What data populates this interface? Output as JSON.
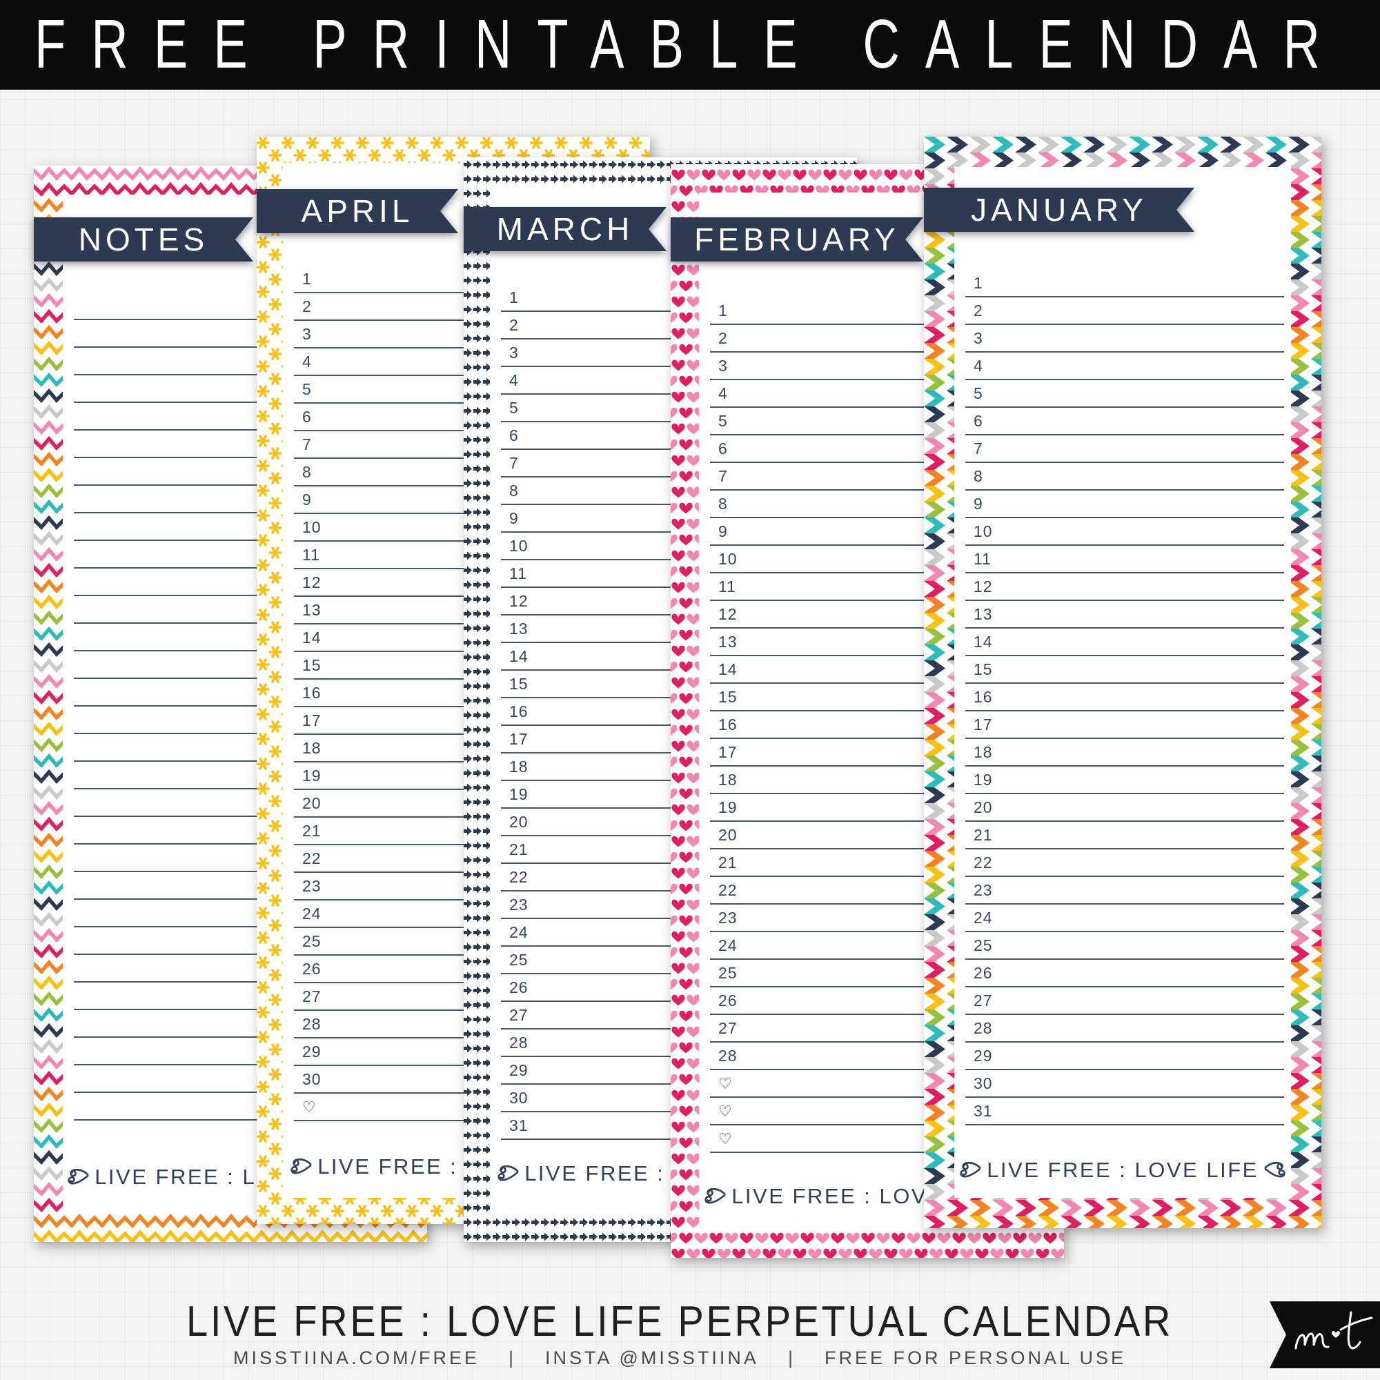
{
  "header": {
    "title": "FREE PRINTABLE CALENDAR"
  },
  "cards": [
    {
      "id": "notes",
      "title": "NOTES",
      "pattern_icon": "rainbow-zigzag-chevron-border",
      "footer": "LIVE FREE : LOVE LIFE",
      "rows": [
        "",
        "",
        "",
        "",
        "",
        "",
        "",
        "",
        "",
        "",
        "",
        "",
        "",
        "",
        "",
        "",
        "",
        "",
        "",
        "",
        "",
        "",
        "",
        "",
        "",
        "",
        "",
        "",
        "",
        ""
      ]
    },
    {
      "id": "april",
      "title": "APRIL",
      "pattern_icon": "yellow-asterisk-border",
      "footer": "LIVE FREE : LOVE LIFE",
      "rows": [
        "1",
        "2",
        "3",
        "4",
        "5",
        "6",
        "7",
        "8",
        "9",
        "10",
        "11",
        "12",
        "13",
        "14",
        "15",
        "16",
        "17",
        "18",
        "19",
        "20",
        "21",
        "22",
        "23",
        "24",
        "25",
        "26",
        "27",
        "28",
        "29",
        "30",
        "♡"
      ]
    },
    {
      "id": "march",
      "title": "MARCH",
      "pattern_icon": "navy-mini-arrows-border",
      "footer": "LIVE FREE : LOVE LIFE",
      "rows": [
        "1",
        "2",
        "3",
        "4",
        "5",
        "6",
        "7",
        "8",
        "9",
        "10",
        "11",
        "12",
        "13",
        "14",
        "15",
        "16",
        "17",
        "18",
        "19",
        "20",
        "21",
        "22",
        "23",
        "24",
        "25",
        "26",
        "27",
        "28",
        "29",
        "30",
        "31"
      ]
    },
    {
      "id": "february",
      "title": "FEBRUARY",
      "pattern_icon": "pink-hearts-border",
      "footer": "LIVE FREE : LOVE LIFE",
      "rows": [
        "1",
        "2",
        "3",
        "4",
        "5",
        "6",
        "7",
        "8",
        "9",
        "10",
        "11",
        "12",
        "13",
        "14",
        "15",
        "16",
        "17",
        "18",
        "19",
        "20",
        "21",
        "22",
        "23",
        "24",
        "25",
        "26",
        "27",
        "28",
        "♡",
        "♡",
        "♡"
      ]
    },
    {
      "id": "january",
      "title": "JANUARY",
      "pattern_icon": "rainbow-chevron-arrows-border",
      "footer": "LIVE FREE : LOVE LIFE",
      "rows": [
        "1",
        "2",
        "3",
        "4",
        "5",
        "6",
        "7",
        "8",
        "9",
        "10",
        "11",
        "12",
        "13",
        "14",
        "15",
        "16",
        "17",
        "18",
        "19",
        "20",
        "21",
        "22",
        "23",
        "24",
        "25",
        "26",
        "27",
        "28",
        "29",
        "30",
        "31"
      ]
    }
  ],
  "footer_caption": {
    "line1": "LIVE FREE : LOVE LIFE PERPETUAL CALENDAR",
    "line2": [
      "MISSTIINA.COM/FREE",
      "INSTA @MISSTIINA",
      "FREE FOR PERSONAL USE"
    ],
    "separator": "|"
  },
  "logo": {
    "monogram": "mt",
    "heart_icon": "♥"
  },
  "palette": {
    "banner_navy": "#2d3a52",
    "line_navy": "#49536a",
    "number_navy": "#39465f",
    "pink": "#f585b1",
    "crimson": "#e21e62",
    "orange": "#f5831f",
    "yellow": "#fcc015",
    "green": "#97c13c",
    "teal": "#2dbcba",
    "gray": "#c9c9c9",
    "topbar_black": "#0b0b0b",
    "page_bg": "#f3f3f1"
  }
}
